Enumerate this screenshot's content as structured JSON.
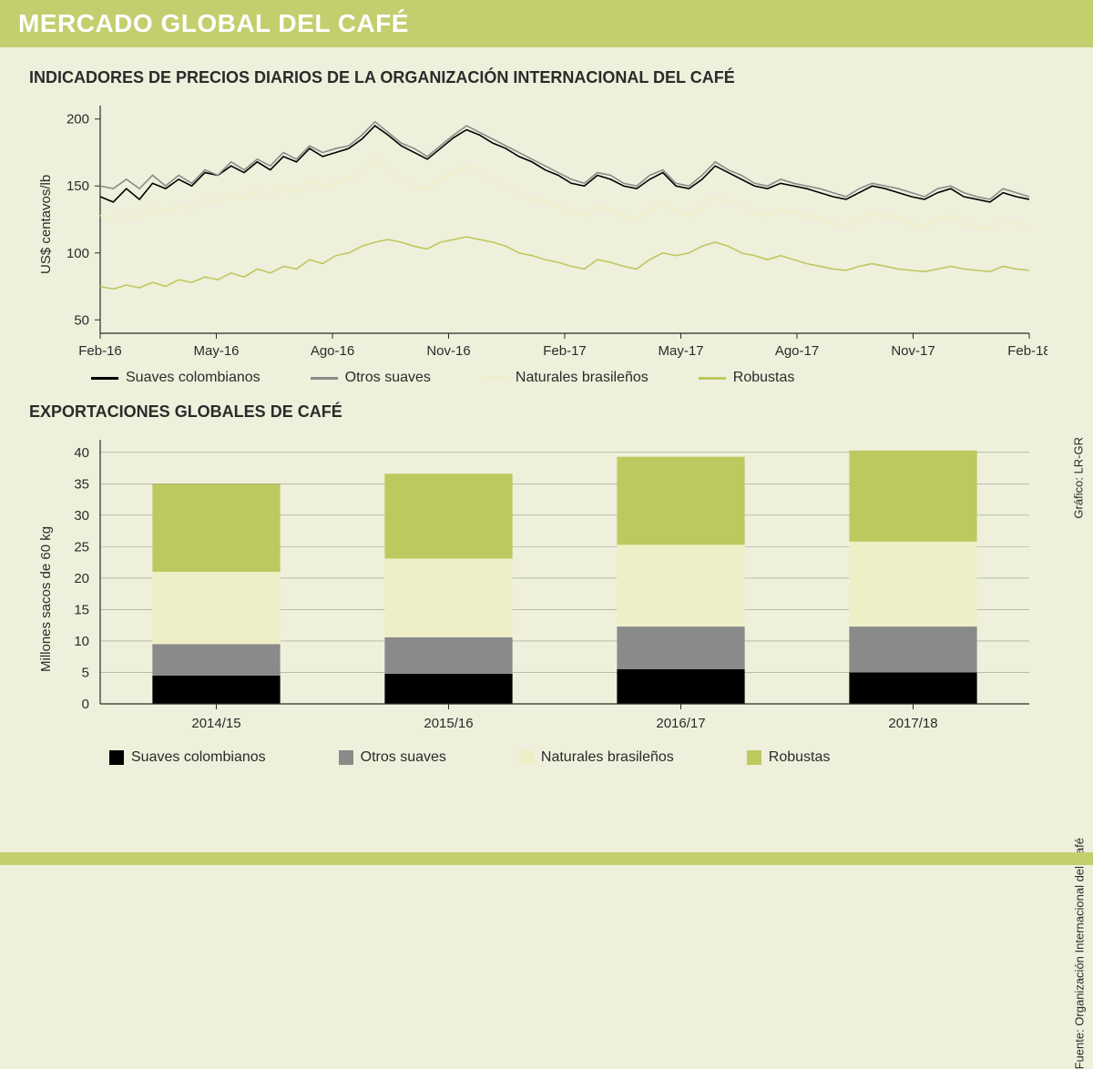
{
  "colors": {
    "page_bg": "#eef0db",
    "header_bg": "#c3cf6e",
    "header_text": "#ffffff",
    "text": "#2b2b2b",
    "axis": "#2b2b2b",
    "grid": "#9a9a8f"
  },
  "header": {
    "title": "MERCADO GLOBAL DEL CAFÉ"
  },
  "credits": {
    "grafico": "Gráfico: LR-GR",
    "fuente": "Fuente: Organización Internacional del Café"
  },
  "line_chart": {
    "type": "line",
    "title": "INDICADORES DE PRECIOS DIARIOS DE LA ORGANIZACIÓN INTERNACIONAL DEL CAFÉ",
    "ylabel": "US$ centavos/lb",
    "xlim": [
      0,
      24
    ],
    "ylim": [
      40,
      210
    ],
    "yticks": [
      50,
      100,
      150,
      200
    ],
    "xticks": [
      {
        "pos": 0,
        "label": "Feb-16"
      },
      {
        "pos": 3,
        "label": "May-16"
      },
      {
        "pos": 6,
        "label": "Ago-16"
      },
      {
        "pos": 9,
        "label": "Nov-16"
      },
      {
        "pos": 12,
        "label": "Feb-17"
      },
      {
        "pos": 15,
        "label": "May-17"
      },
      {
        "pos": 18,
        "label": "Ago-17"
      },
      {
        "pos": 21,
        "label": "Nov-17"
      },
      {
        "pos": 24,
        "label": "Feb-18"
      }
    ],
    "line_width": 1.6,
    "series": [
      {
        "name": "Suaves colombianos",
        "color": "#000000",
        "y": [
          142,
          138,
          148,
          140,
          152,
          148,
          155,
          150,
          160,
          158,
          165,
          160,
          168,
          162,
          172,
          168,
          178,
          172,
          175,
          178,
          185,
          195,
          188,
          180,
          175,
          170,
          178,
          186,
          192,
          188,
          182,
          178,
          172,
          168,
          162,
          158,
          152,
          150,
          158,
          155,
          150,
          148,
          155,
          160,
          150,
          148,
          155,
          165,
          160,
          155,
          150,
          148,
          152,
          150,
          148,
          145,
          142,
          140,
          145,
          150,
          148,
          145,
          142,
          140,
          145,
          148,
          142,
          140,
          138,
          145,
          142,
          140
        ]
      },
      {
        "name": "Otros suaves",
        "color": "#8a8a8a",
        "y": [
          150,
          148,
          155,
          148,
          158,
          150,
          158,
          152,
          162,
          158,
          168,
          162,
          170,
          165,
          175,
          170,
          180,
          175,
          178,
          180,
          188,
          198,
          190,
          182,
          178,
          172,
          180,
          188,
          195,
          190,
          185,
          180,
          175,
          170,
          165,
          160,
          155,
          152,
          160,
          158,
          152,
          150,
          158,
          162,
          152,
          150,
          158,
          168,
          162,
          158,
          152,
          150,
          155,
          152,
          150,
          148,
          145,
          142,
          148,
          152,
          150,
          148,
          145,
          142,
          148,
          150,
          145,
          142,
          140,
          148,
          145,
          142
        ]
      },
      {
        "name": "Naturales brasileños",
        "color": "#eeefc6",
        "y": [
          128,
          125,
          130,
          125,
          135,
          130,
          136,
          132,
          140,
          138,
          145,
          140,
          148,
          142,
          150,
          145,
          155,
          150,
          152,
          155,
          160,
          170,
          162,
          155,
          150,
          148,
          155,
          160,
          165,
          160,
          155,
          150,
          145,
          140,
          138,
          135,
          130,
          128,
          135,
          132,
          128,
          125,
          132,
          138,
          130,
          128,
          135,
          142,
          138,
          135,
          130,
          128,
          132,
          130,
          128,
          125,
          122,
          120,
          125,
          130,
          128,
          125,
          122,
          120,
          125,
          128,
          122,
          120,
          118,
          125,
          122,
          120
        ]
      },
      {
        "name": "Robustas",
        "color": "#bcc95f",
        "y": [
          75,
          73,
          76,
          74,
          78,
          75,
          80,
          78,
          82,
          80,
          85,
          82,
          88,
          85,
          90,
          88,
          95,
          92,
          98,
          100,
          105,
          108,
          110,
          108,
          105,
          103,
          108,
          110,
          112,
          110,
          108,
          105,
          100,
          98,
          95,
          93,
          90,
          88,
          95,
          93,
          90,
          88,
          95,
          100,
          98,
          100,
          105,
          108,
          105,
          100,
          98,
          95,
          98,
          95,
          92,
          90,
          88,
          87,
          90,
          92,
          90,
          88,
          87,
          86,
          88,
          90,
          88,
          87,
          86,
          90,
          88,
          87
        ]
      }
    ],
    "legend": [
      "Suaves colombianos",
      "Otros suaves",
      "Naturales brasileños",
      "Robustas"
    ]
  },
  "bar_chart": {
    "type": "stacked-bar",
    "title": "EXPORTACIONES GLOBALES DE CAFÉ",
    "ylabel": "Millones sacos de 60 kg",
    "ylim": [
      0,
      42
    ],
    "yticks": [
      0,
      5,
      10,
      15,
      20,
      25,
      30,
      35,
      40
    ],
    "categories": [
      "2014/15",
      "2015/16",
      "2016/17",
      "2017/18"
    ],
    "bar_width": 0.55,
    "series": [
      {
        "name": "Suaves colombianos",
        "color": "#000000",
        "values": [
          4.5,
          4.8,
          5.5,
          5.0
        ]
      },
      {
        "name": "Otros suaves",
        "color": "#8a8a8a",
        "values": [
          5.0,
          5.8,
          6.8,
          7.3
        ]
      },
      {
        "name": "Naturales brasileños",
        "color": "#eeefc6",
        "values": [
          11.5,
          12.5,
          13.0,
          13.5
        ]
      },
      {
        "name": "Robustas",
        "color": "#bcc95f",
        "values": [
          14.0,
          13.5,
          14.0,
          14.5
        ]
      }
    ]
  }
}
